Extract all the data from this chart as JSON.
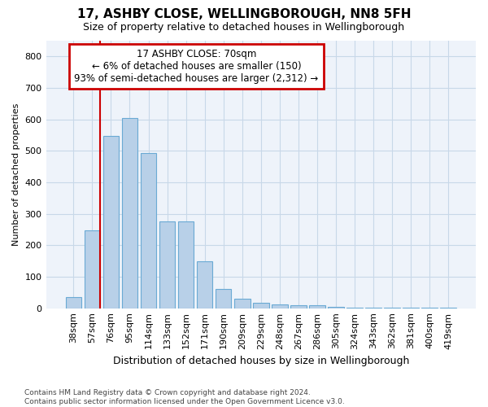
{
  "title": "17, ASHBY CLOSE, WELLINGBOROUGH, NN8 5FH",
  "subtitle": "Size of property relative to detached houses in Wellingborough",
  "xlabel": "Distribution of detached houses by size in Wellingborough",
  "ylabel": "Number of detached properties",
  "categories": [
    "38sqm",
    "57sqm",
    "76sqm",
    "95sqm",
    "114sqm",
    "133sqm",
    "152sqm",
    "171sqm",
    "190sqm",
    "209sqm",
    "229sqm",
    "248sqm",
    "267sqm",
    "286sqm",
    "305sqm",
    "324sqm",
    "343sqm",
    "362sqm",
    "381sqm",
    "400sqm",
    "419sqm"
  ],
  "values": [
    35,
    248,
    548,
    605,
    493,
    275,
    275,
    148,
    60,
    30,
    18,
    13,
    10,
    9,
    5,
    3,
    3,
    3,
    1,
    3,
    3
  ],
  "bar_color": "#b8d0e8",
  "bar_edge_color": "#6aaad4",
  "vline_x_index": 1,
  "vline_color": "#cc0000",
  "annotation_line1": "17 ASHBY CLOSE: 70sqm",
  "annotation_line2": "← 6% of detached houses are smaller (150)",
  "annotation_line3": "93% of semi-detached houses are larger (2,312) →",
  "annotation_box_color": "#cc0000",
  "ylim": [
    0,
    850
  ],
  "yticks": [
    0,
    100,
    200,
    300,
    400,
    500,
    600,
    700,
    800
  ],
  "grid_color": "#c8d8e8",
  "background_color": "#eef3fa",
  "title_fontsize": 11,
  "subtitle_fontsize": 9,
  "ylabel_fontsize": 8,
  "xlabel_fontsize": 9,
  "footnote": "Contains HM Land Registry data © Crown copyright and database right 2024.\nContains public sector information licensed under the Open Government Licence v3.0."
}
